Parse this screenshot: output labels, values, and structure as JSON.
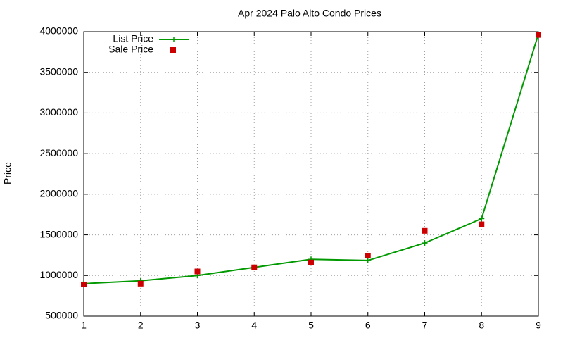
{
  "chart_data": {
    "type": "line",
    "title": "Apr 2024 Palo Alto Condo Prices",
    "y_label": "Price",
    "x": [
      1,
      2,
      3,
      4,
      5,
      6,
      7,
      8,
      9
    ],
    "series": [
      {
        "name": "List Price",
        "color": "#009900",
        "style": "line",
        "values": [
          900000,
          935000,
          1000000,
          1100000,
          1200000,
          1185000,
          1400000,
          1700000,
          3970000
        ]
      },
      {
        "name": "Sale Price",
        "color": "#cc0000",
        "style": "points",
        "values": [
          890000,
          900000,
          1050000,
          1100000,
          1160000,
          1245000,
          1550000,
          1630000,
          3960000
        ]
      }
    ],
    "xlim": [
      1,
      9
    ],
    "xticks": [
      1,
      2,
      3,
      4,
      5,
      6,
      7,
      8,
      9
    ],
    "ylim": [
      500000,
      4000000
    ],
    "yticks": [
      500000,
      1000000,
      1500000,
      2000000,
      2500000,
      3000000,
      3500000,
      4000000
    ],
    "grid": true,
    "legend": "top-left"
  }
}
